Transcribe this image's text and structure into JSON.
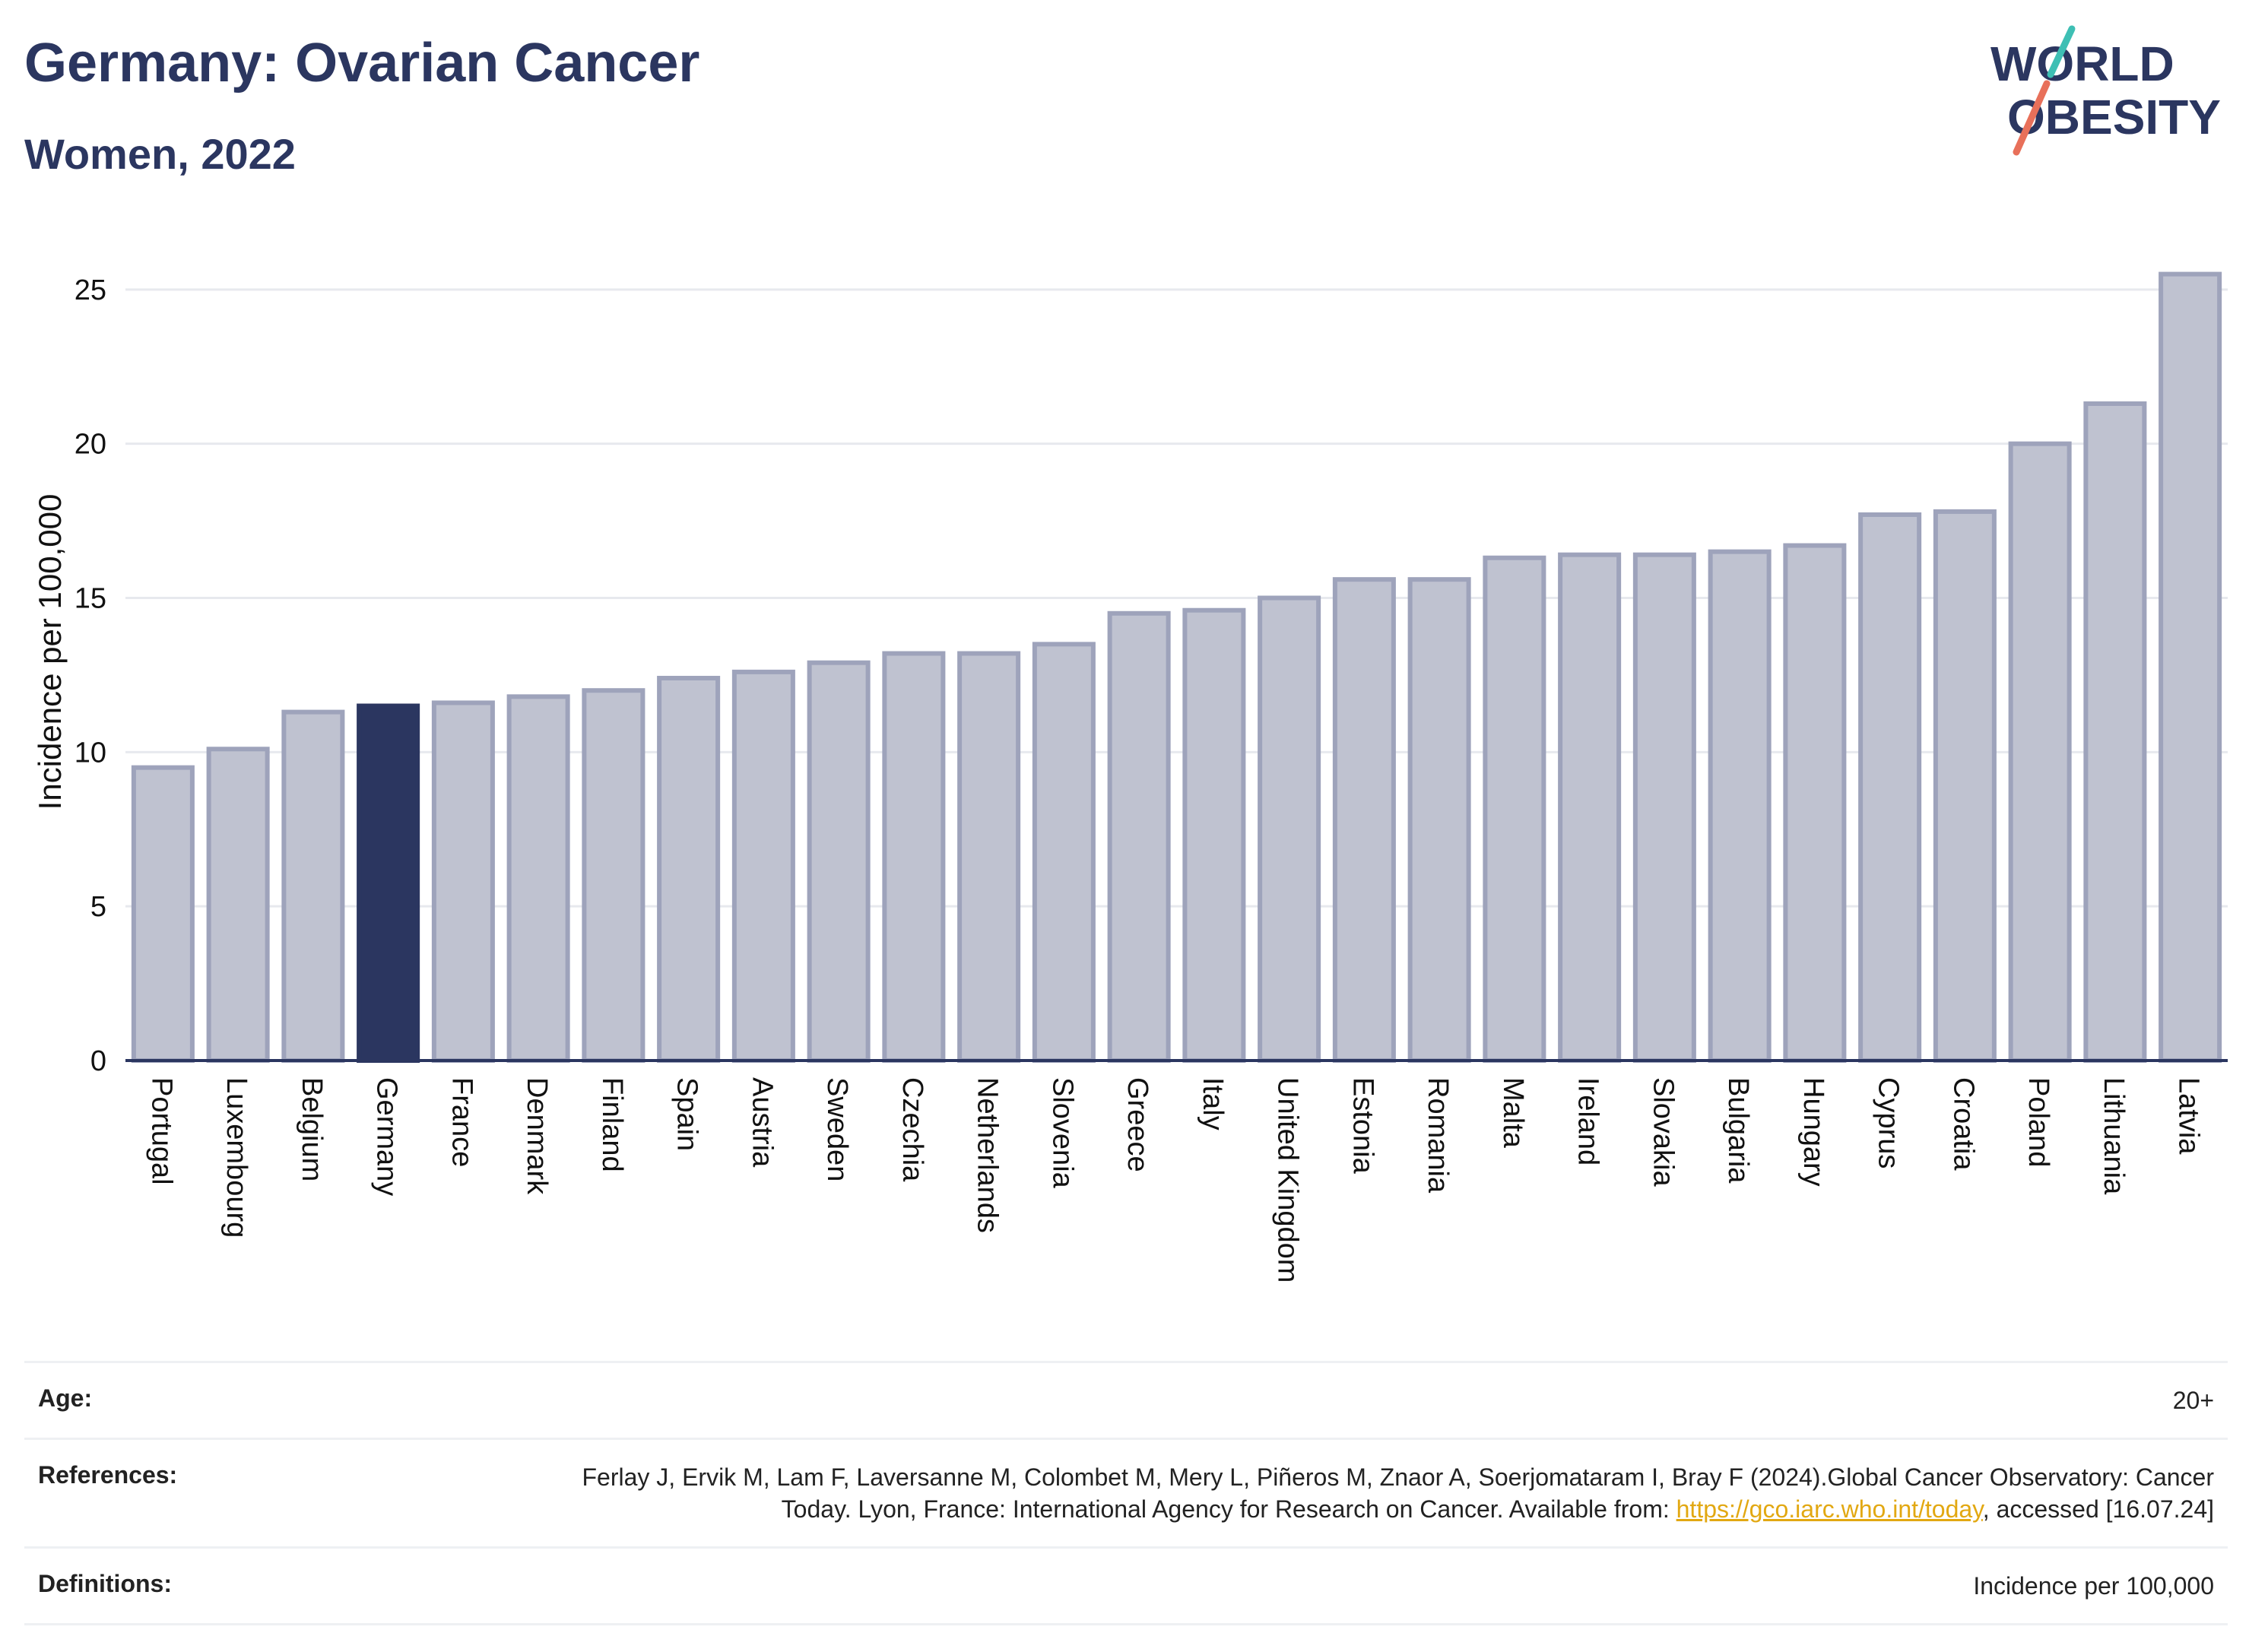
{
  "header": {
    "title": "Germany: Ovarian Cancer",
    "subtitle": "Women, 2022"
  },
  "logo": {
    "line1": "WORLD",
    "line2": "OBESITY",
    "slash_colors": [
      "#3ebfb4",
      "#e8705a"
    ]
  },
  "colors": {
    "bar_fill": "#bfc2d0",
    "bar_stroke": "#9ea3bb",
    "highlight": "#2b3660",
    "grid": "#e7e9ee",
    "axis": "#2b3660"
  },
  "chart_data": {
    "type": "bar",
    "title": "Germany: Ovarian Cancer",
    "subtitle": "Women, 2022",
    "ylabel": "Incidence per 100,000",
    "xlabel": "",
    "ylim": [
      0,
      26.5
    ],
    "yticks": [
      0,
      5,
      10,
      15,
      20,
      25
    ],
    "grid": true,
    "highlight": "Germany",
    "categories": [
      "Portugal",
      "Luxembourg",
      "Belgium",
      "Germany",
      "France",
      "Denmark",
      "Finland",
      "Spain",
      "Austria",
      "Sweden",
      "Czechia",
      "Netherlands",
      "Slovenia",
      "Greece",
      "Italy",
      "United Kingdom",
      "Estonia",
      "Romania",
      "Malta",
      "Ireland",
      "Slovakia",
      "Bulgaria",
      "Hungary",
      "Cyprus",
      "Croatia",
      "Poland",
      "Lithuania",
      "Latvia"
    ],
    "values": [
      9.5,
      10.1,
      11.3,
      11.5,
      11.6,
      11.8,
      12.0,
      12.4,
      12.6,
      12.9,
      13.2,
      13.2,
      13.5,
      14.5,
      14.6,
      15.0,
      15.6,
      15.6,
      16.3,
      16.4,
      16.4,
      16.5,
      16.7,
      17.7,
      17.8,
      20.0,
      21.3,
      25.5
    ]
  },
  "footer": {
    "age_label": "Age:",
    "age_value": "20+",
    "references_label": "References:",
    "references_text_1": "Ferlay J, Ervik M, Lam F, Laversanne M, Colombet M, Mery L, Piñeros M, Znaor A, Soerjomataram I, Bray F (2024).Global Cancer Observatory: Cancer Today. Lyon, France: International Agency for Research on Cancer. Available from: ",
    "references_link": "https://gco.iarc.who.int/today",
    "references_text_2": ", accessed [16.07.24]",
    "definitions_label": "Definitions:",
    "definitions_value": "Incidence per 100,000"
  }
}
